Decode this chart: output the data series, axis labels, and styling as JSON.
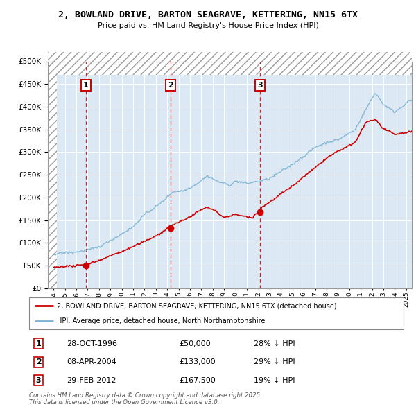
{
  "title": "2, BOWLAND DRIVE, BARTON SEAGRAVE, KETTERING, NN15 6TX",
  "subtitle": "Price paid vs. HM Land Registry's House Price Index (HPI)",
  "legend_red": "2, BOWLAND DRIVE, BARTON SEAGRAVE, KETTERING, NN15 6TX (detached house)",
  "legend_blue": "HPI: Average price, detached house, North Northamptonshire",
  "footer": "Contains HM Land Registry data © Crown copyright and database right 2025.\nThis data is licensed under the Open Government Licence v3.0.",
  "sales": [
    {
      "label": 1,
      "date": 1996.83,
      "price": 50000,
      "text": "28-OCT-1996",
      "price_text": "£50,000",
      "hpi_text": "28% ↓ HPI"
    },
    {
      "label": 2,
      "date": 2004.27,
      "price": 133000,
      "text": "08-APR-2004",
      "price_text": "£133,000",
      "hpi_text": "29% ↓ HPI"
    },
    {
      "label": 3,
      "date": 2012.17,
      "price": 167500,
      "text": "29-FEB-2012",
      "price_text": "£167,500",
      "hpi_text": "19% ↓ HPI"
    }
  ],
  "ylim": [
    0,
    500000
  ],
  "xlim": [
    1993.5,
    2025.5
  ],
  "hpi_color": "#7ab3d4",
  "sale_color": "#cc0000",
  "background_color": "#dce9f5",
  "hatch_color": "#bbbbbb"
}
